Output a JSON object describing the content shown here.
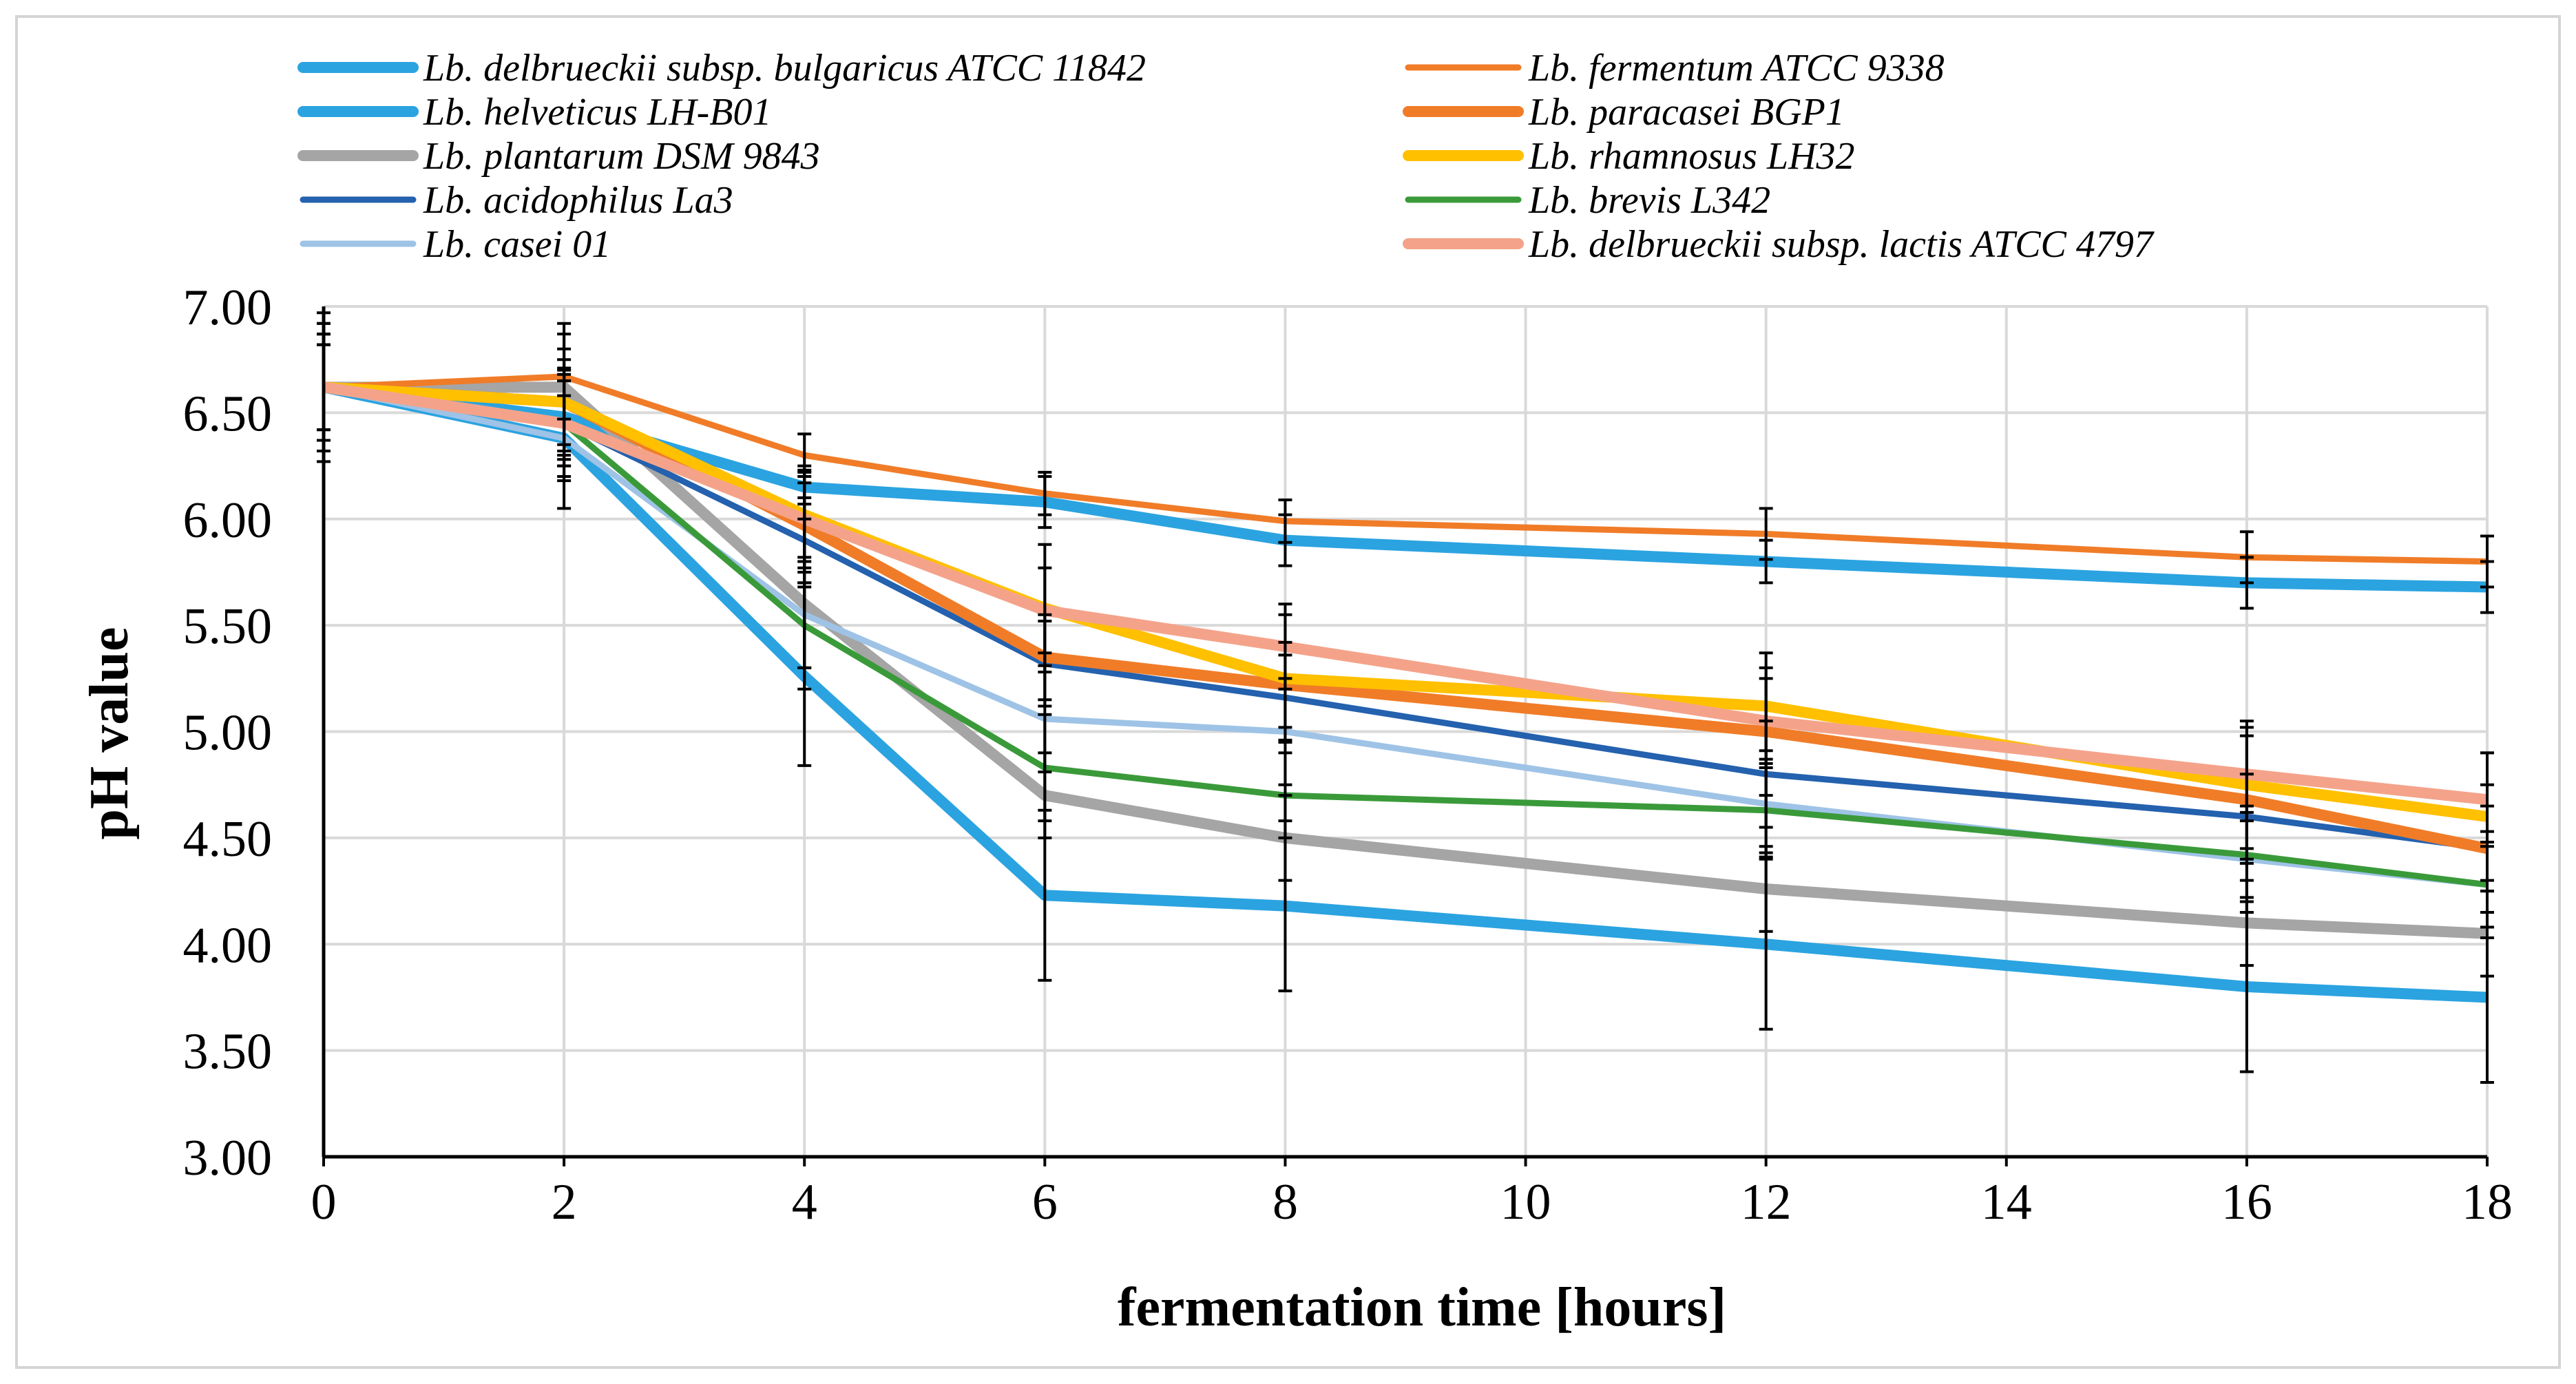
{
  "chart_data": {
    "type": "line",
    "title": "",
    "xlabel": "fermentation time [hours]",
    "ylabel": "pH value",
    "x": [
      0,
      2,
      4,
      6,
      8,
      12,
      16,
      18
    ],
    "xticks": [
      "0",
      "2",
      "4",
      "6",
      "8",
      "10",
      "12",
      "14",
      "16",
      "18"
    ],
    "xtick_values": [
      0,
      2,
      4,
      6,
      8,
      10,
      12,
      14,
      16,
      18
    ],
    "yticks": [
      "3.00",
      "3.50",
      "4.00",
      "4.50",
      "5.00",
      "5.50",
      "6.00",
      "6.50",
      "7.00"
    ],
    "ytick_values": [
      3.0,
      3.5,
      4.0,
      4.5,
      5.0,
      5.5,
      6.0,
      6.5,
      7.0
    ],
    "xlim": [
      0,
      18
    ],
    "ylim": [
      3.0,
      7.0
    ],
    "grid": true,
    "legend_position": "top",
    "series": [
      {
        "name": "Lb. delbrueckii subsp. bulgaricus ATCC 11842",
        "color": "#2ba3e0",
        "weight": "thick",
        "values": [
          6.62,
          6.38,
          5.26,
          4.23,
          4.18,
          4.0,
          3.8,
          3.75
        ],
        "errors": [
          0.35,
          0.33,
          0.42,
          0.4,
          0.4,
          0.4,
          0.4,
          0.4
        ]
      },
      {
        "name": "Lb. helveticus LH-B01",
        "color": "#2ba3e0",
        "weight": "thick",
        "values": [
          6.62,
          6.48,
          6.15,
          6.08,
          5.9,
          5.8,
          5.7,
          5.68
        ],
        "errors": [
          0.25,
          0.2,
          0.08,
          0.12,
          0.12,
          0.1,
          0.12,
          0.12
        ]
      },
      {
        "name": "Lb. plantarum DSM 9843",
        "color": "#a5a5a5",
        "weight": "thick",
        "values": [
          6.62,
          6.62,
          5.6,
          4.7,
          4.5,
          4.26,
          4.1,
          4.05
        ],
        "errors": [
          0.3,
          0.3,
          0.4,
          0.2,
          0.2,
          0.2,
          0.2,
          0.2
        ]
      },
      {
        "name": "Lb. acidophilus La3",
        "color": "#2461ae",
        "weight": "medium",
        "values": [
          6.62,
          6.45,
          5.9,
          5.32,
          5.16,
          4.8,
          4.6,
          4.45
        ],
        "errors": [
          0.2,
          0.2,
          0.2,
          0.2,
          0.2,
          0.25,
          0.2,
          0.2
        ]
      },
      {
        "name": "Lb. casei 01",
        "color": "#9ec3e6",
        "weight": "medium",
        "values": [
          6.62,
          6.38,
          5.55,
          5.06,
          5.0,
          4.66,
          4.4,
          4.28
        ],
        "errors": [
          0.2,
          0.2,
          0.25,
          0.25,
          0.25,
          0.25,
          0.25,
          0.25
        ]
      },
      {
        "name": "Lb. fermentum ATCC 9338",
        "color": "#f07c28",
        "weight": "medium",
        "values": [
          6.62,
          6.67,
          6.3,
          6.12,
          5.99,
          5.93,
          5.82,
          5.8
        ],
        "errors": [
          0.25,
          0.2,
          0.1,
          0.1,
          0.1,
          0.12,
          0.12,
          0.12
        ]
      },
      {
        "name": "Lb. paracasei BGP1",
        "color": "#f07c28",
        "weight": "thick",
        "values": [
          6.62,
          6.55,
          5.97,
          5.35,
          5.22,
          5.0,
          4.68,
          4.45
        ],
        "errors": [
          0.25,
          0.2,
          0.2,
          0.2,
          0.2,
          0.3,
          0.3,
          0.3
        ]
      },
      {
        "name": "Lb. rhamnosus LH32",
        "color": "#ffc000",
        "weight": "thick",
        "values": [
          6.62,
          6.55,
          6.02,
          5.58,
          5.25,
          5.12,
          4.75,
          4.6
        ],
        "errors": [
          0.25,
          0.25,
          0.2,
          0.3,
          0.3,
          0.25,
          0.3,
          0.3
        ]
      },
      {
        "name": "Lb. brevis L342",
        "color": "#3a9a3a",
        "weight": "medium",
        "values": [
          6.62,
          6.45,
          5.5,
          4.83,
          4.7,
          4.63,
          4.42,
          4.28
        ],
        "errors": [
          0.3,
          0.25,
          0.2,
          0.25,
          0.2,
          0.2,
          0.2,
          0.2
        ]
      },
      {
        "name": "Lb. delbrueckii subsp. lactis ATCC 4797",
        "color": "#f4a38a",
        "weight": "thick",
        "values": [
          6.62,
          6.45,
          6.0,
          5.57,
          5.4,
          5.05,
          4.8,
          4.68
        ],
        "errors": [
          0.2,
          0.2,
          0.25,
          0.2,
          0.2,
          0.2,
          0.22,
          0.22
        ]
      }
    ]
  }
}
